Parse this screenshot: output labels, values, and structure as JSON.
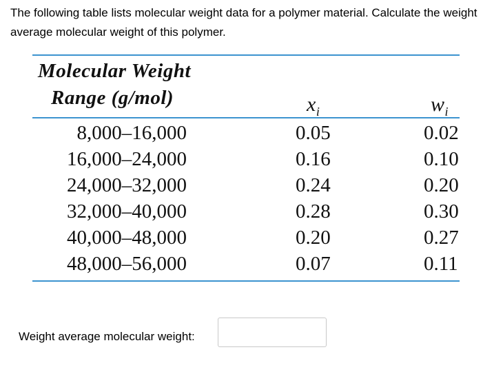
{
  "question": {
    "text": "The following table lists molecular weight data for a polymer material.  Calculate the weight average molecular weight of this polymer."
  },
  "table": {
    "header": {
      "range_line1": "Molecular Weight",
      "range_line2": "Range (g/mol)",
      "x_label": "x",
      "x_sub": "i",
      "w_label": "w",
      "w_sub": "i"
    },
    "rows": [
      {
        "range": "8,000–16,000",
        "x": "0.05",
        "w": "0.02"
      },
      {
        "range": "16,000–24,000",
        "x": "0.16",
        "w": "0.10"
      },
      {
        "range": "24,000–32,000",
        "x": "0.24",
        "w": "0.20"
      },
      {
        "range": "32,000–40,000",
        "x": "0.28",
        "w": "0.30"
      },
      {
        "range": "40,000–48,000",
        "x": "0.20",
        "w": "0.27"
      },
      {
        "range": "48,000–56,000",
        "x": "0.07",
        "w": "0.11"
      }
    ],
    "rule_color": "#3b93cf"
  },
  "answer": {
    "label": "Weight average molecular weight:",
    "value": "",
    "placeholder": ""
  }
}
